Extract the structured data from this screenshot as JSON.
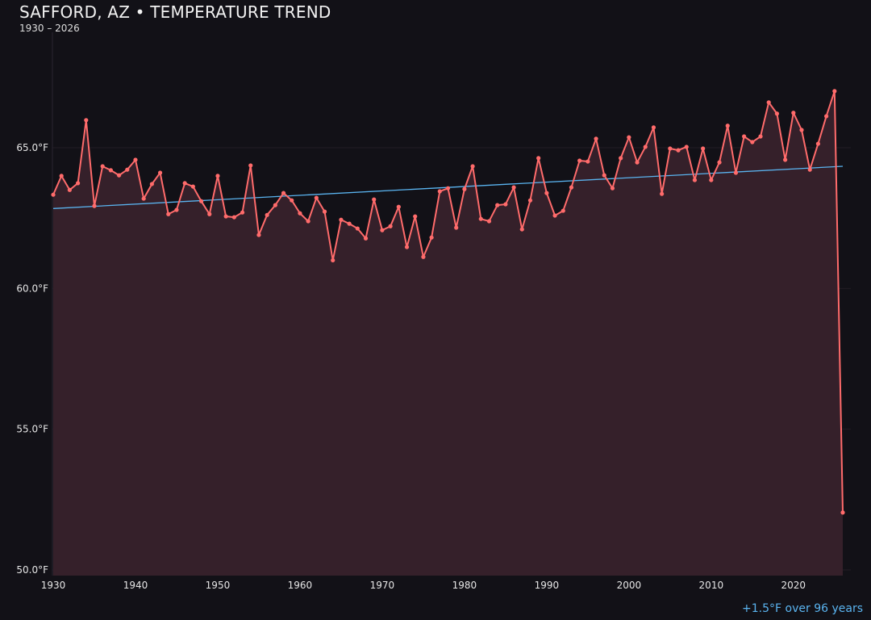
{
  "chart_data": {
    "type": "line",
    "title": "SAFFORD, AZ • TEMPERATURE TREND",
    "subtitle": "1930 – 2026",
    "annotation": "+1.5°F over 96 years",
    "xlabel": "",
    "ylabel": "",
    "xlim": [
      1930,
      2027
    ],
    "ylim": [
      49.8,
      69.1
    ],
    "grid": true,
    "x_ticks": [
      "1930",
      "1940",
      "1950",
      "1960",
      "1970",
      "1980",
      "1990",
      "2000",
      "2010",
      "2020"
    ],
    "y_ticks": [
      "50.0°F",
      "55.0°F",
      "60.0°F",
      "65.0°F"
    ],
    "colors": {
      "background": "#121117",
      "line": "#ff6b6b",
      "fill": "#35202a",
      "trend": "#5ab4f0",
      "grid": "#231d24"
    },
    "x": [
      1930,
      1931,
      1932,
      1933,
      1934,
      1935,
      1936,
      1937,
      1938,
      1939,
      1940,
      1941,
      1942,
      1943,
      1944,
      1945,
      1946,
      1947,
      1948,
      1949,
      1950,
      1951,
      1952,
      1953,
      1954,
      1955,
      1956,
      1957,
      1958,
      1959,
      1960,
      1961,
      1962,
      1963,
      1964,
      1965,
      1966,
      1967,
      1968,
      1969,
      1970,
      1971,
      1972,
      1973,
      1974,
      1975,
      1976,
      1977,
      1978,
      1979,
      1980,
      1981,
      1982,
      1983,
      1984,
      1985,
      1986,
      1987,
      1988,
      1989,
      1990,
      1991,
      1992,
      1993,
      1994,
      1995,
      1996,
      1997,
      1998,
      1999,
      2000,
      2001,
      2002,
      2003,
      2004,
      2005,
      2006,
      2007,
      2008,
      2009,
      2010,
      2011,
      2012,
      2013,
      2014,
      2015,
      2016,
      2017,
      2018,
      2019,
      2020,
      2021,
      2022,
      2023,
      2024,
      2025,
      2026
    ],
    "series": [
      {
        "values": [
          63.33,
          64.0,
          63.5,
          63.74,
          65.98,
          62.93,
          64.34,
          64.2,
          64.02,
          64.22,
          64.57,
          63.19,
          63.71,
          64.11,
          62.64,
          62.79,
          63.74,
          63.62,
          63.1,
          62.64,
          64.0,
          62.56,
          62.53,
          62.7,
          64.37,
          61.9,
          62.61,
          62.96,
          63.39,
          63.13,
          62.67,
          62.39,
          63.22,
          62.73,
          61.0,
          62.44,
          62.3,
          62.13,
          61.78,
          63.16,
          62.07,
          62.21,
          62.9,
          61.47,
          62.56,
          61.12,
          61.81,
          63.45,
          63.56,
          62.16,
          63.53,
          64.34,
          62.47,
          62.39,
          62.96,
          62.99,
          63.59,
          62.1,
          63.13,
          64.63,
          63.39,
          62.59,
          62.76,
          63.59,
          64.54,
          64.51,
          65.32,
          64.02,
          63.56,
          64.63,
          65.37,
          64.48,
          65.03,
          65.72,
          63.36,
          64.97,
          64.91,
          65.03,
          63.85,
          64.97,
          63.85,
          64.48,
          65.78,
          64.11,
          65.4,
          65.2,
          65.4,
          66.61,
          66.21,
          64.57,
          66.24,
          65.63,
          64.22,
          65.14,
          66.12,
          67.01,
          52.04
        ]
      }
    ],
    "trend": {
      "x": [
        1930,
        2026
      ],
      "y": [
        62.84,
        64.34
      ]
    }
  }
}
